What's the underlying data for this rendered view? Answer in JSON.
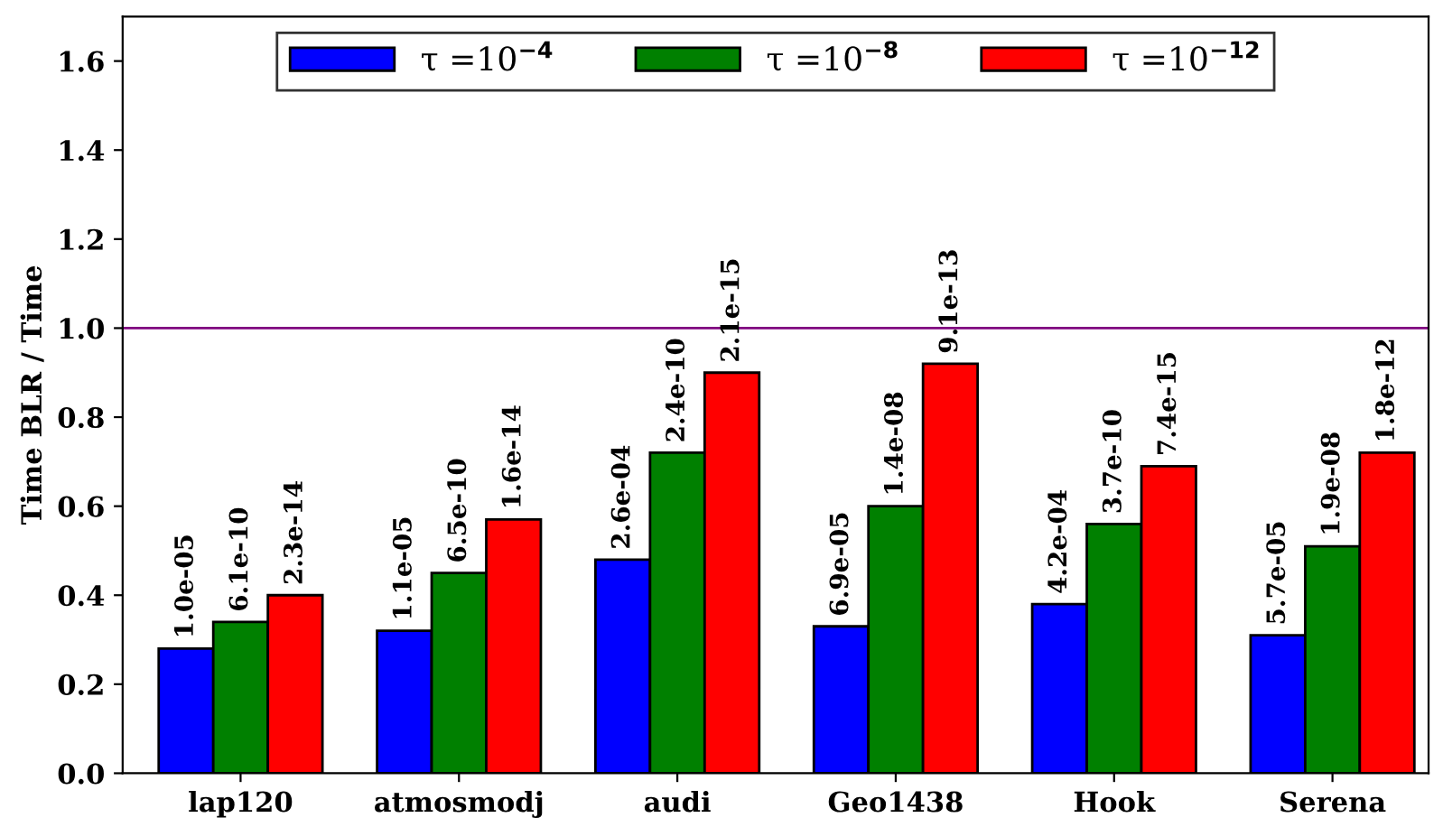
{
  "chart_data": {
    "type": "bar",
    "ylabel": "Time BLR / Time",
    "categories": [
      "lap120",
      "atmosmodj",
      "audi",
      "Geo1438",
      "Hook",
      "Serena"
    ],
    "series": [
      {
        "name": "τ =10$^{−4}$",
        "color": "#0000ff",
        "values": [
          0.28,
          0.32,
          0.48,
          0.33,
          0.38,
          0.31
        ]
      },
      {
        "name": "τ =10$^{−8}$",
        "color": "#008000",
        "values": [
          0.34,
          0.45,
          0.72,
          0.6,
          0.56,
          0.51
        ]
      },
      {
        "name": "τ =10$^{−12}$",
        "color": "#ff0000",
        "values": [
          0.4,
          0.57,
          0.9,
          0.92,
          0.69,
          0.72
        ]
      }
    ],
    "annotations": [
      "1.0e-05",
      "6.1e-10",
      "2.3e-14",
      "1.1e-05",
      "6.5e-10",
      "1.6e-14",
      "2.6e-04",
      "2.4e-10",
      "2.1e-15",
      "6.9e-05",
      "1.4e-08",
      "9.1e-13",
      "4.2e-04",
      "3.7e-10",
      "7.4e-15",
      "5.7e-05",
      "1.9e-08",
      "1.8e-12"
    ],
    "ylim": [
      0,
      1.7
    ],
    "yticks": [
      {
        "value": 0.0,
        "label": "0.0"
      },
      {
        "value": 0.2,
        "label": "0.2"
      },
      {
        "value": 0.4,
        "label": "0.4"
      },
      {
        "value": 0.6,
        "label": "0.6"
      },
      {
        "value": 0.8,
        "label": "0.8"
      },
      {
        "value": 1.0,
        "label": "1.0"
      },
      {
        "value": 1.2,
        "label": "1.2"
      },
      {
        "value": 1.4,
        "label": "1.4"
      },
      {
        "value": 1.6,
        "label": "1.6"
      }
    ],
    "ref_lines": [
      {
        "axis": "y",
        "value": 1.0,
        "label": null,
        "color": "#800080"
      }
    ],
    "legend": "top",
    "grid": false
  }
}
